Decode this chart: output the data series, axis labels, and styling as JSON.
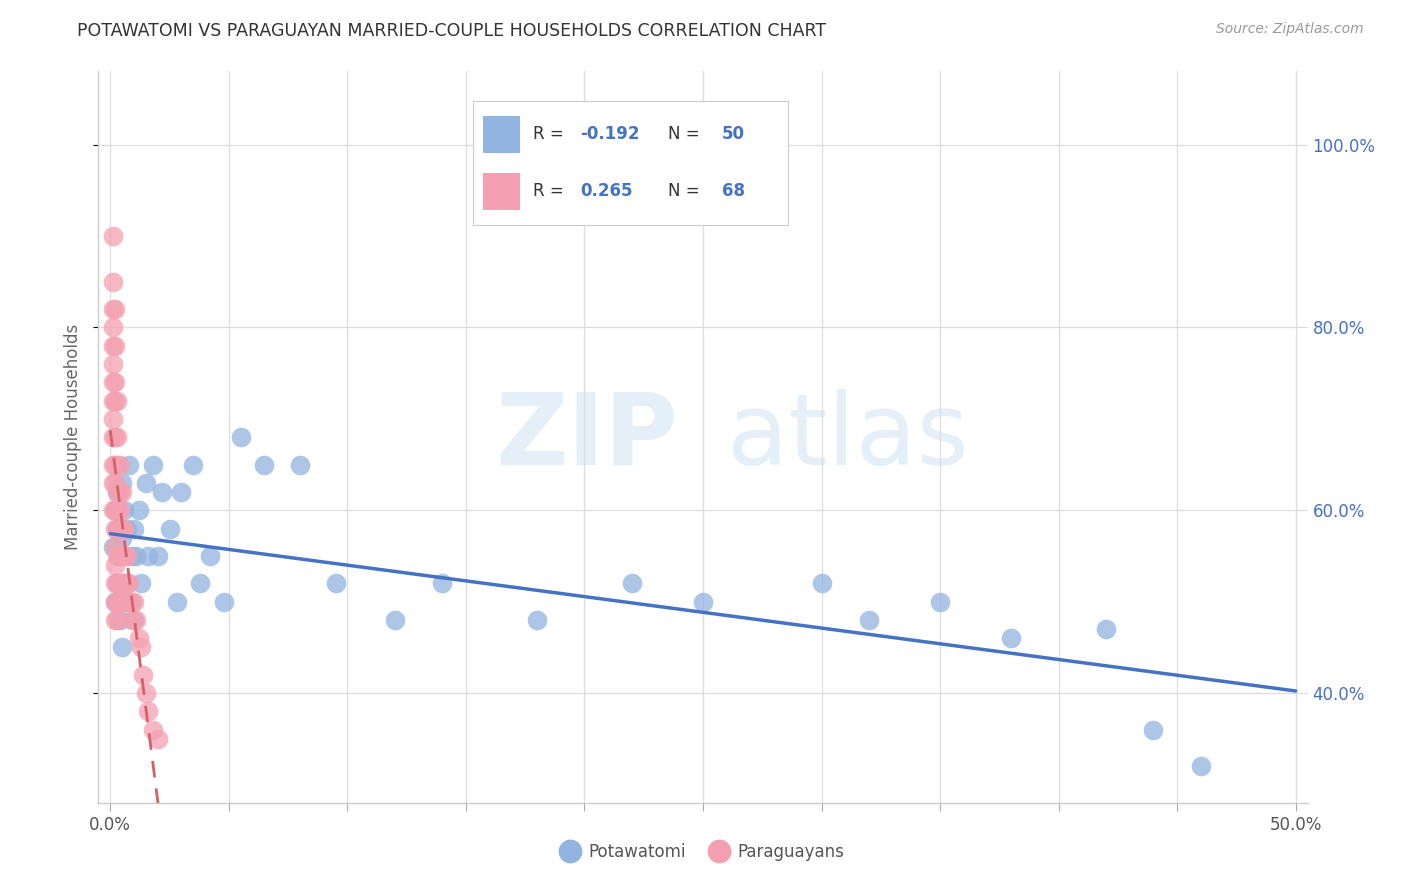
{
  "title": "POTAWATOMI VS PARAGUAYAN MARRIED-COUPLE HOUSEHOLDS CORRELATION CHART",
  "source": "Source: ZipAtlas.com",
  "ylabel": "Married-couple Households",
  "blue_color": "#92b4e0",
  "pink_color": "#f4a0b0",
  "trendline_blue": "#4472c4",
  "trendline_pink": "#d4606a",
  "xlim": [
    0.0,
    0.5
  ],
  "ylim": [
    0.28,
    1.08
  ],
  "yticks": [
    0.4,
    0.6,
    0.8,
    1.0
  ],
  "yticklabels": [
    "40.0%",
    "60.0%",
    "80.0%",
    "100.0%"
  ],
  "xtick_positions": [
    0.0,
    0.05,
    0.1,
    0.15,
    0.2,
    0.25,
    0.3,
    0.35,
    0.4,
    0.45,
    0.5
  ],
  "legend_r1": "R = -0.192",
  "legend_n1": "N = 50",
  "legend_r2": "R =  0.265",
  "legend_n2": "N = 68",
  "potawatomi_x": [
    0.001,
    0.002,
    0.002,
    0.003,
    0.003,
    0.003,
    0.004,
    0.004,
    0.005,
    0.005,
    0.005,
    0.006,
    0.006,
    0.007,
    0.008,
    0.008,
    0.009,
    0.01,
    0.01,
    0.011,
    0.012,
    0.013,
    0.015,
    0.016,
    0.018,
    0.02,
    0.022,
    0.025,
    0.028,
    0.03,
    0.035,
    0.038,
    0.042,
    0.048,
    0.055,
    0.065,
    0.08,
    0.095,
    0.12,
    0.14,
    0.18,
    0.22,
    0.25,
    0.3,
    0.32,
    0.35,
    0.38,
    0.42,
    0.44,
    0.46
  ],
  "potawatomi_y": [
    0.56,
    0.6,
    0.5,
    0.58,
    0.52,
    0.62,
    0.55,
    0.48,
    0.63,
    0.57,
    0.45,
    0.6,
    0.52,
    0.58,
    0.65,
    0.5,
    0.55,
    0.58,
    0.48,
    0.55,
    0.6,
    0.52,
    0.63,
    0.55,
    0.65,
    0.55,
    0.62,
    0.58,
    0.5,
    0.62,
    0.65,
    0.52,
    0.55,
    0.5,
    0.68,
    0.65,
    0.65,
    0.52,
    0.48,
    0.52,
    0.48,
    0.52,
    0.5,
    0.52,
    0.48,
    0.5,
    0.46,
    0.47,
    0.36,
    0.32
  ],
  "paraguayan_x": [
    0.001,
    0.001,
    0.001,
    0.001,
    0.001,
    0.001,
    0.001,
    0.001,
    0.001,
    0.001,
    0.001,
    0.001,
    0.001,
    0.002,
    0.002,
    0.002,
    0.002,
    0.002,
    0.002,
    0.002,
    0.002,
    0.002,
    0.002,
    0.002,
    0.002,
    0.002,
    0.002,
    0.003,
    0.003,
    0.003,
    0.003,
    0.003,
    0.003,
    0.003,
    0.003,
    0.003,
    0.003,
    0.004,
    0.004,
    0.004,
    0.004,
    0.004,
    0.004,
    0.004,
    0.005,
    0.005,
    0.005,
    0.005,
    0.005,
    0.006,
    0.006,
    0.006,
    0.007,
    0.007,
    0.007,
    0.008,
    0.008,
    0.009,
    0.009,
    0.01,
    0.011,
    0.012,
    0.013,
    0.014,
    0.015,
    0.016,
    0.018,
    0.02
  ],
  "paraguayan_y": [
    0.9,
    0.85,
    0.82,
    0.8,
    0.78,
    0.76,
    0.74,
    0.72,
    0.7,
    0.68,
    0.65,
    0.63,
    0.6,
    0.82,
    0.78,
    0.74,
    0.72,
    0.68,
    0.65,
    0.63,
    0.6,
    0.58,
    0.56,
    0.54,
    0.52,
    0.5,
    0.48,
    0.72,
    0.68,
    0.65,
    0.62,
    0.6,
    0.58,
    0.55,
    0.52,
    0.5,
    0.48,
    0.65,
    0.62,
    0.6,
    0.58,
    0.55,
    0.52,
    0.5,
    0.62,
    0.58,
    0.55,
    0.52,
    0.5,
    0.58,
    0.55,
    0.52,
    0.55,
    0.52,
    0.5,
    0.52,
    0.5,
    0.5,
    0.48,
    0.5,
    0.48,
    0.46,
    0.45,
    0.42,
    0.4,
    0.38,
    0.36,
    0.35
  ]
}
